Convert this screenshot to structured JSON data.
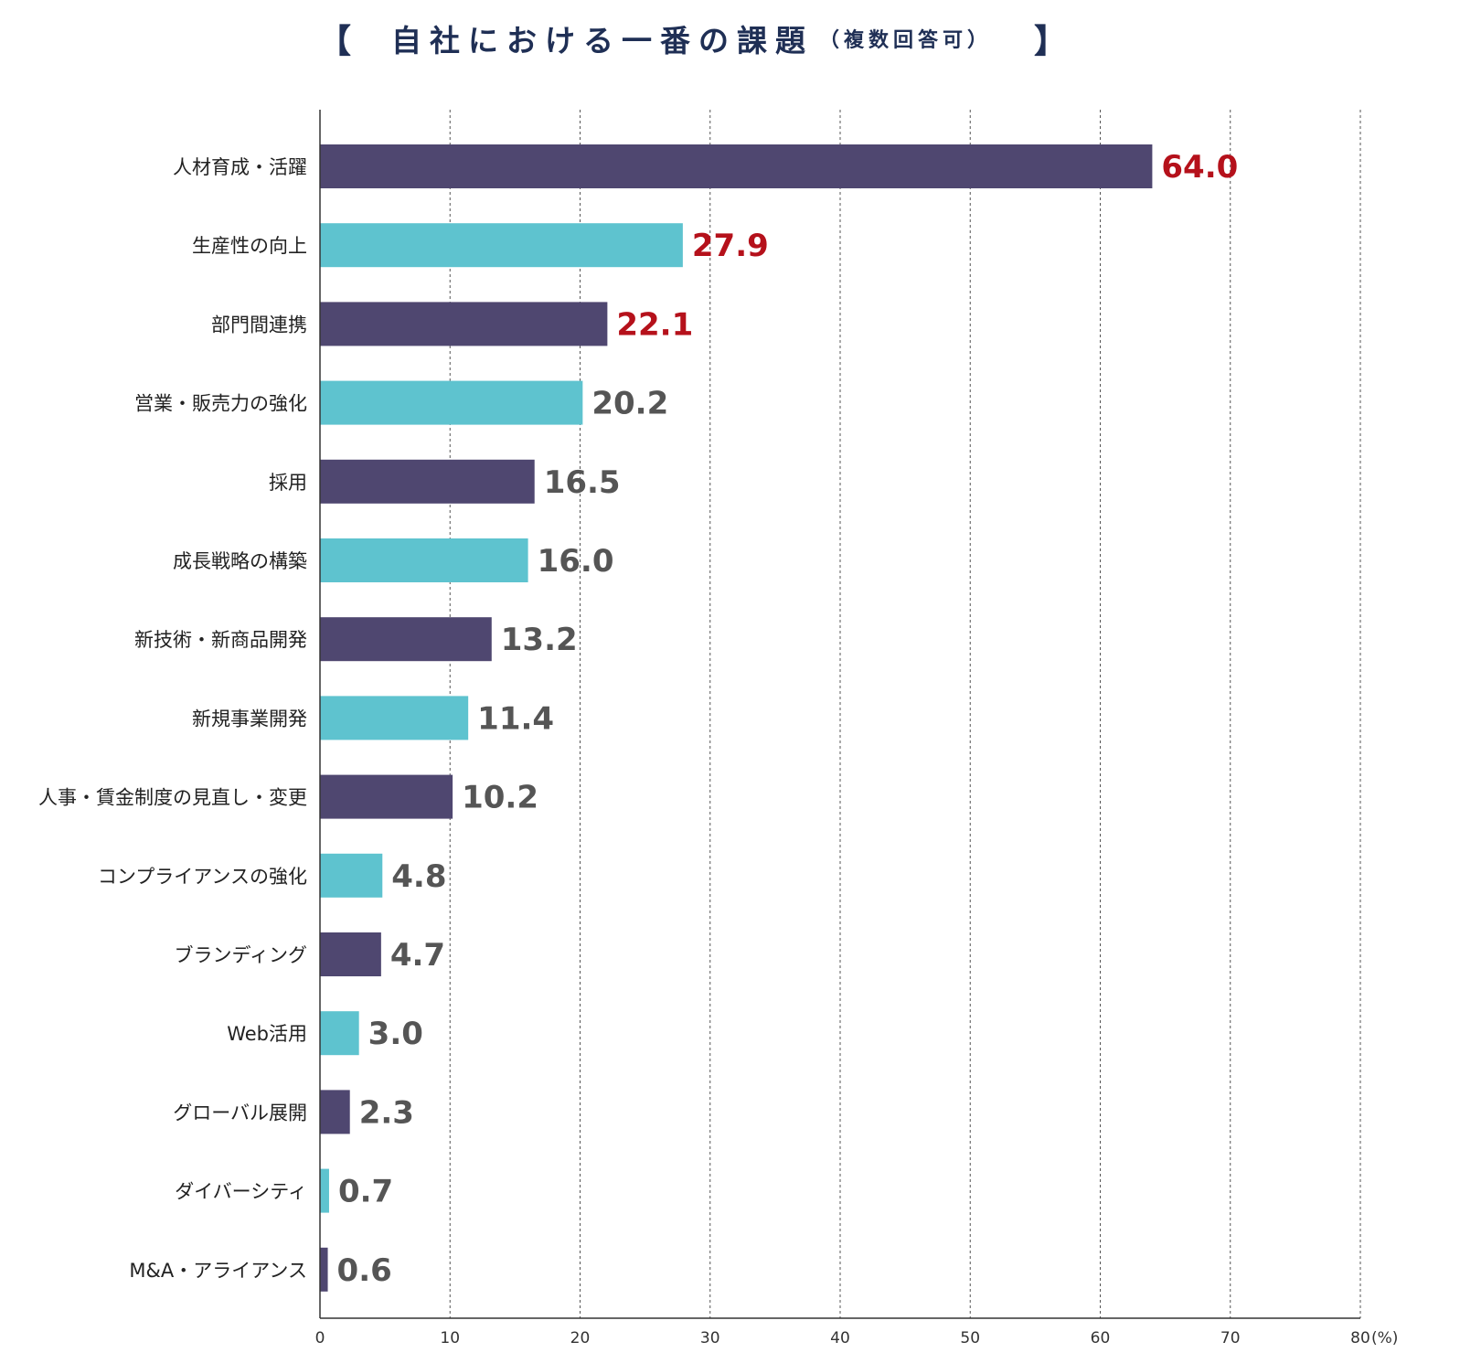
{
  "title": {
    "open_bracket": "【",
    "main": "自社における一番の課題",
    "sub": "（複数回答可）",
    "close_bracket": "】"
  },
  "colors": {
    "dark_bar": "#4f4770",
    "light_bar": "#5ec3cf",
    "highlight_value": "#b5111b",
    "normal_value": "#555555",
    "title": "#1f2f55"
  },
  "chart_data": {
    "type": "bar",
    "orientation": "horizontal",
    "categories": [
      "人材育成・活躍",
      "生産性の向上",
      "部門間連携",
      "営業・販売力の強化",
      "採用",
      "成長戦略の構築",
      "新技術・新商品開発",
      "新規事業開発",
      "人事・賃金制度の見直し・変更",
      "コンプライアンスの強化",
      "ブランディング",
      "Web活用",
      "グローバル展開",
      "ダイバーシティ",
      "M&A・アライアンス"
    ],
    "values": [
      64.0,
      27.9,
      22.1,
      20.2,
      16.5,
      16.0,
      13.2,
      11.4,
      10.2,
      4.8,
      4.7,
      3.0,
      2.3,
      0.7,
      0.6
    ],
    "value_labels": [
      "64.0",
      "27.9",
      "22.1",
      "20.2",
      "16.5",
      "16.0",
      "13.2",
      "11.4",
      "10.2",
      "4.8",
      "4.7",
      "3.0",
      "2.3",
      "0.7",
      "0.6"
    ],
    "highlighted": [
      true,
      true,
      true,
      false,
      false,
      false,
      false,
      false,
      false,
      false,
      false,
      false,
      false,
      false,
      false
    ],
    "bar_colors": [
      "dark",
      "light",
      "dark",
      "light",
      "dark",
      "light",
      "dark",
      "light",
      "dark",
      "light",
      "dark",
      "light",
      "dark",
      "light",
      "dark"
    ],
    "xlim": [
      0,
      80
    ],
    "xticks": [
      0,
      10,
      20,
      30,
      40,
      50,
      60,
      70,
      80
    ],
    "xtick_labels": [
      "0",
      "10",
      "20",
      "30",
      "40",
      "50",
      "60",
      "70",
      "80"
    ],
    "x_unit": "(%)",
    "grid": "vertical dashed"
  }
}
